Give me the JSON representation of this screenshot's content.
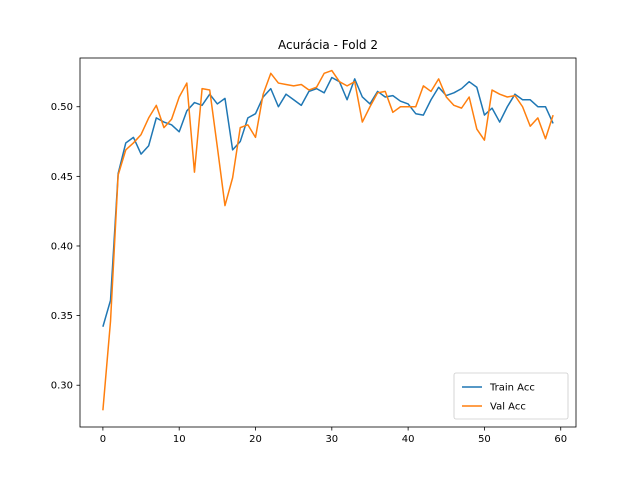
{
  "chart_data": {
    "type": "line",
    "title": "Acurácia - Fold 2",
    "xlabel": "",
    "ylabel": "",
    "xlim": [
      -3,
      62
    ],
    "ylim": [
      0.27,
      0.535
    ],
    "xticks": [
      0,
      10,
      20,
      30,
      40,
      50,
      60
    ],
    "yticks": [
      0.3,
      0.35,
      0.4,
      0.45,
      0.5
    ],
    "grid": false,
    "legend_position": "lower-right",
    "series": [
      {
        "name": "Train Acc",
        "color": "#1f77b4",
        "values": [
          0.342,
          0.361,
          0.452,
          0.474,
          0.478,
          0.466,
          0.472,
          0.492,
          0.489,
          0.487,
          0.482,
          0.497,
          0.503,
          0.501,
          0.509,
          0.502,
          0.506,
          0.469,
          0.475,
          0.492,
          0.495,
          0.507,
          0.513,
          0.5,
          0.509,
          0.505,
          0.501,
          0.511,
          0.513,
          0.51,
          0.521,
          0.518,
          0.505,
          0.52,
          0.507,
          0.502,
          0.511,
          0.507,
          0.508,
          0.504,
          0.502,
          0.495,
          0.494,
          0.505,
          0.514,
          0.508,
          0.51,
          0.513,
          0.518,
          0.514,
          0.494,
          0.499,
          0.489,
          0.5,
          0.509,
          0.505,
          0.505,
          0.5,
          0.5,
          0.488
        ]
      },
      {
        "name": "Val Acc",
        "color": "#ff7f0e",
        "values": [
          0.282,
          0.346,
          0.451,
          0.469,
          0.474,
          0.48,
          0.492,
          0.501,
          0.485,
          0.491,
          0.507,
          0.517,
          0.453,
          0.513,
          0.512,
          0.471,
          0.429,
          0.449,
          0.485,
          0.487,
          0.478,
          0.509,
          0.524,
          0.517,
          0.516,
          0.515,
          0.516,
          0.512,
          0.514,
          0.524,
          0.526,
          0.518,
          0.515,
          0.518,
          0.489,
          0.5,
          0.51,
          0.511,
          0.496,
          0.5,
          0.5,
          0.5,
          0.515,
          0.511,
          0.52,
          0.507,
          0.501,
          0.499,
          0.507,
          0.484,
          0.476,
          0.512,
          0.509,
          0.507,
          0.508,
          0.5,
          0.486,
          0.492,
          0.477,
          0.494
        ]
      }
    ]
  }
}
